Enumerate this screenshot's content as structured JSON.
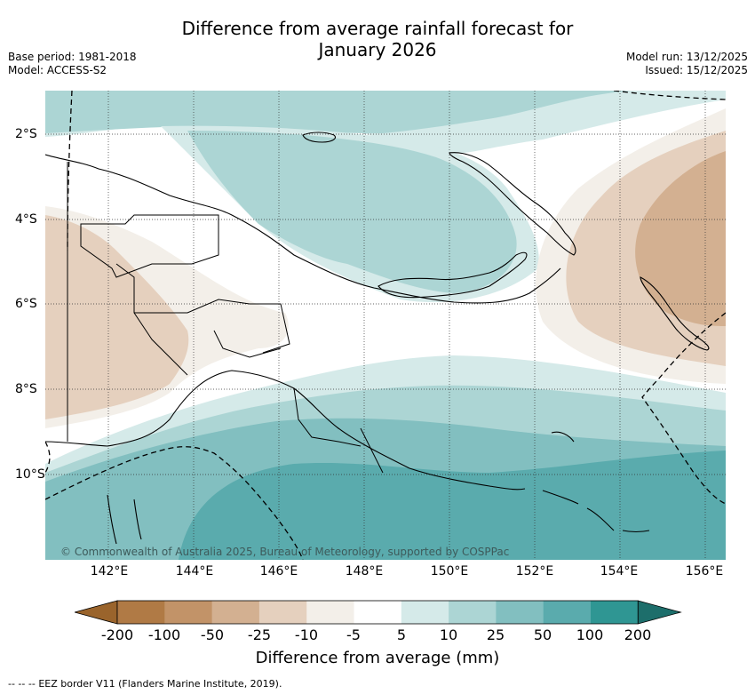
{
  "title": {
    "line1": "Difference from average rainfall forecast for",
    "line2": "January 2026"
  },
  "meta": {
    "base_period": "Base period: 1981-2018",
    "model": "Model: ACCESS-S2",
    "model_run": "Model run: 13/12/2025",
    "issued": "Issued: 15/12/2025"
  },
  "map": {
    "lon_labels": [
      "142°E",
      "144°E",
      "146°E",
      "148°E",
      "150°E",
      "152°E",
      "154°E",
      "156°E"
    ],
    "lat_labels": [
      "2°S",
      "4°S",
      "6°S",
      "8°S",
      "10°S"
    ],
    "copyright": "© Commonwealth of Australia 2025, Bureau of Meteorology, supported by COSPPac"
  },
  "colorbar": {
    "title": "Difference from average (mm)",
    "ticks": [
      "-200",
      "-100",
      "-50",
      "-25",
      "-10",
      "-5",
      "5",
      "10",
      "25",
      "50",
      "100",
      "200"
    ],
    "colors": [
      "#9a642c",
      "#b07a45",
      "#c29368",
      "#d3b091",
      "#e5d0be",
      "#f3efe9",
      "#ffffff",
      "#d5eae9",
      "#acd5d4",
      "#82bfc0",
      "#5aabad",
      "#2f9693",
      "#1d6e6b"
    ]
  },
  "footer": {
    "legend_symbol": "-- --  --",
    "legend_text": "EEZ border V11 (Flanders Marine Institute, 2019)."
  }
}
